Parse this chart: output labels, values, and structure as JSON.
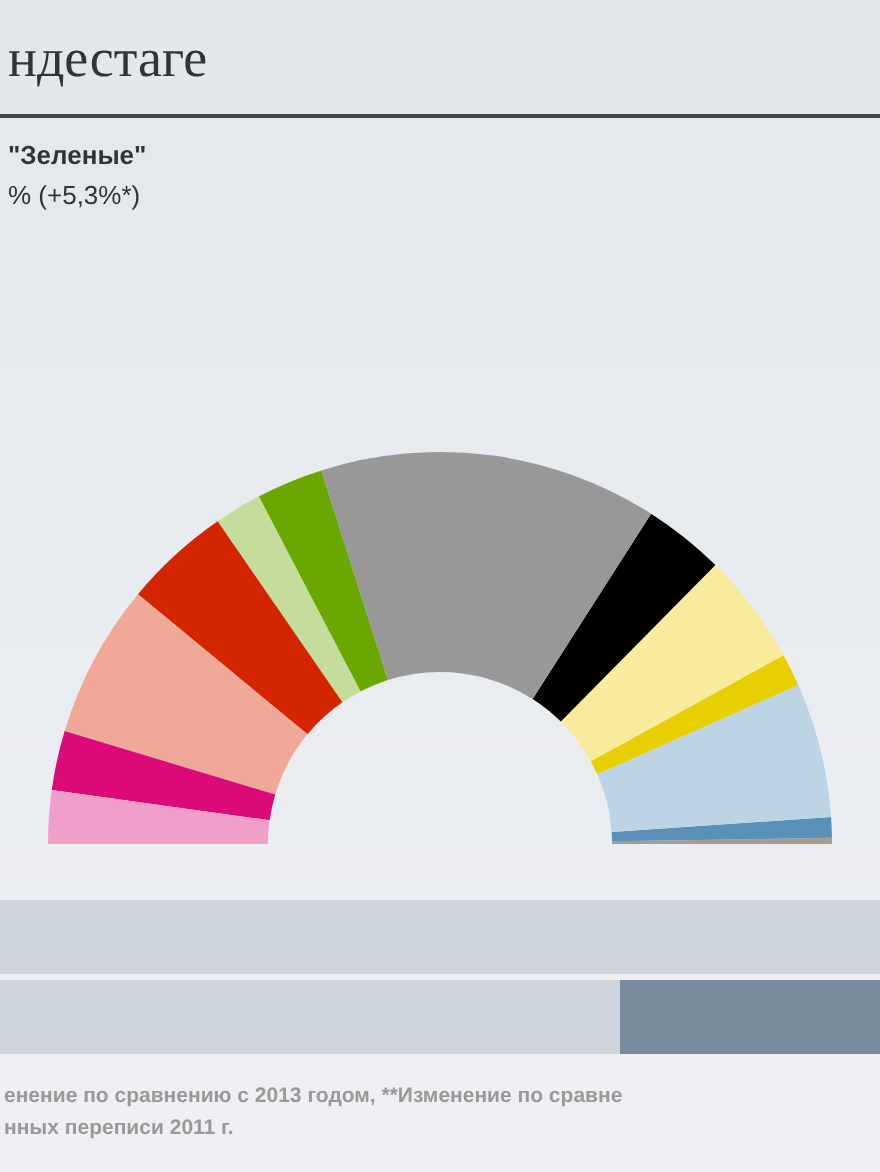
{
  "chart_data": {
    "type": "donut",
    "title": "ндестаге",
    "categories": [
      null,
      null,
      null,
      null,
      null,
      null,
      null,
      null,
      null,
      null,
      null,
      null,
      null
    ],
    "values": [
      0.5,
      1.7,
      11.1,
      2.7,
      9.2,
      6.7,
      27.9,
      5.5,
      3.9,
      8.8,
      12.7,
      4.9,
      4.4
    ],
    "colors": [
      "#a89c90",
      "#5890b8",
      "#bcd4e4",
      "#e8d000",
      "#f8ec9c",
      "#000000",
      "#989898",
      "#6aa800",
      "#c4dc9c",
      "#d42500",
      "#f0a898",
      "#dc0a78",
      "#f0a0c8"
    ],
    "annotations": [
      "\"Зеленые\"",
      "% (+5,3%*)",
      "енение по сравнению с 2013 годом, **Изменение по сравне",
      "нных переписи 2011 г."
    ],
    "legend": false
  }
}
